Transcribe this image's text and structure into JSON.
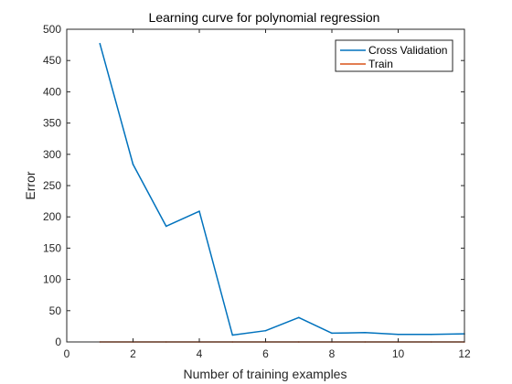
{
  "chart_data": {
    "type": "line",
    "title": "Learning curve for polynomial regression",
    "xlabel": "Number of training examples",
    "ylabel": "Error",
    "xlim": [
      0,
      12
    ],
    "ylim": [
      0,
      500
    ],
    "x_ticks": [
      0,
      2,
      4,
      6,
      8,
      10,
      12
    ],
    "y_ticks": [
      0,
      50,
      100,
      150,
      200,
      250,
      300,
      350,
      400,
      450,
      500
    ],
    "grid": false,
    "legend_position": "top-right",
    "x": [
      1,
      2,
      3,
      4,
      5,
      6,
      7,
      8,
      9,
      10,
      11,
      12
    ],
    "series": [
      {
        "name": "Cross Validation",
        "color": "#0072BD",
        "values": [
          477,
          284,
          185,
          209,
          11,
          18,
          39,
          14,
          15,
          12,
          12,
          13
        ]
      },
      {
        "name": "Train",
        "color": "#D95319",
        "values": [
          0,
          0,
          0,
          0,
          0,
          0,
          0,
          0,
          0,
          0,
          0,
          0
        ]
      }
    ]
  }
}
